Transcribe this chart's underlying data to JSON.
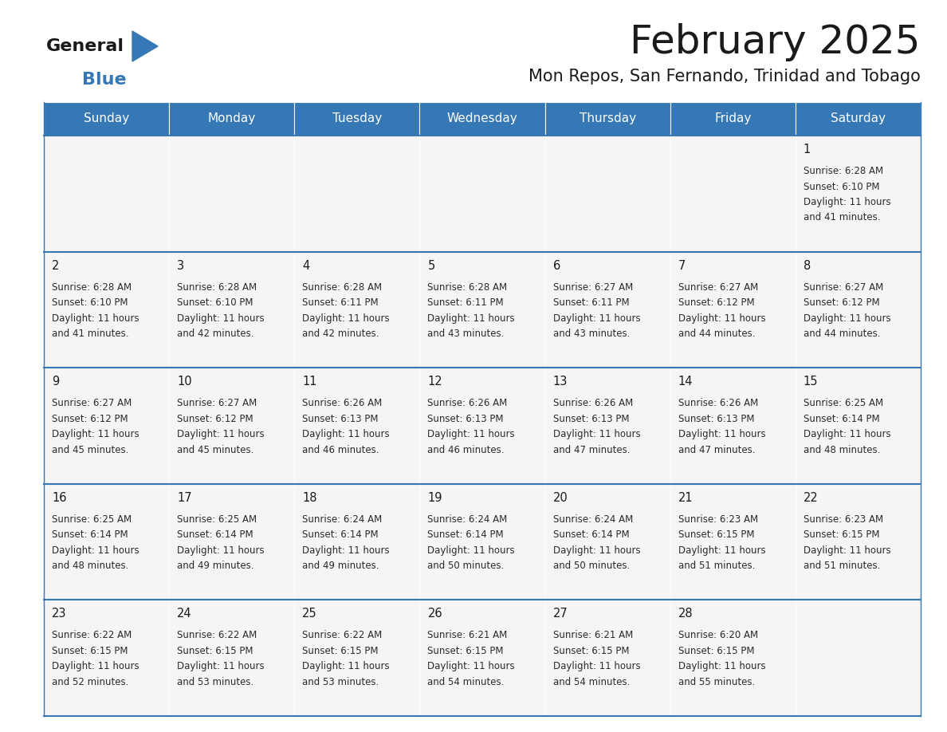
{
  "title": "February 2025",
  "subtitle": "Mon Repos, San Fernando, Trinidad and Tobago",
  "header_color": "#3578b5",
  "header_text_color": "#ffffff",
  "days_of_week": [
    "Sunday",
    "Monday",
    "Tuesday",
    "Wednesday",
    "Thursday",
    "Friday",
    "Saturday"
  ],
  "cell_bg_top": "#ebebeb",
  "cell_bg_main": "#f5f5f5",
  "day_number_color": "#1a1a1a",
  "info_text_color": "#2a2a2a",
  "border_color": "#3578b5",
  "calendar_data": [
    [
      null,
      null,
      null,
      null,
      null,
      null,
      {
        "day": 1,
        "sunrise": "6:28 AM",
        "sunset": "6:10 PM",
        "daylight_line1": "Daylight: 11 hours",
        "daylight_line2": "and 41 minutes."
      }
    ],
    [
      {
        "day": 2,
        "sunrise": "6:28 AM",
        "sunset": "6:10 PM",
        "daylight_line1": "Daylight: 11 hours",
        "daylight_line2": "and 41 minutes."
      },
      {
        "day": 3,
        "sunrise": "6:28 AM",
        "sunset": "6:10 PM",
        "daylight_line1": "Daylight: 11 hours",
        "daylight_line2": "and 42 minutes."
      },
      {
        "day": 4,
        "sunrise": "6:28 AM",
        "sunset": "6:11 PM",
        "daylight_line1": "Daylight: 11 hours",
        "daylight_line2": "and 42 minutes."
      },
      {
        "day": 5,
        "sunrise": "6:28 AM",
        "sunset": "6:11 PM",
        "daylight_line1": "Daylight: 11 hours",
        "daylight_line2": "and 43 minutes."
      },
      {
        "day": 6,
        "sunrise": "6:27 AM",
        "sunset": "6:11 PM",
        "daylight_line1": "Daylight: 11 hours",
        "daylight_line2": "and 43 minutes."
      },
      {
        "day": 7,
        "sunrise": "6:27 AM",
        "sunset": "6:12 PM",
        "daylight_line1": "Daylight: 11 hours",
        "daylight_line2": "and 44 minutes."
      },
      {
        "day": 8,
        "sunrise": "6:27 AM",
        "sunset": "6:12 PM",
        "daylight_line1": "Daylight: 11 hours",
        "daylight_line2": "and 44 minutes."
      }
    ],
    [
      {
        "day": 9,
        "sunrise": "6:27 AM",
        "sunset": "6:12 PM",
        "daylight_line1": "Daylight: 11 hours",
        "daylight_line2": "and 45 minutes."
      },
      {
        "day": 10,
        "sunrise": "6:27 AM",
        "sunset": "6:12 PM",
        "daylight_line1": "Daylight: 11 hours",
        "daylight_line2": "and 45 minutes."
      },
      {
        "day": 11,
        "sunrise": "6:26 AM",
        "sunset": "6:13 PM",
        "daylight_line1": "Daylight: 11 hours",
        "daylight_line2": "and 46 minutes."
      },
      {
        "day": 12,
        "sunrise": "6:26 AM",
        "sunset": "6:13 PM",
        "daylight_line1": "Daylight: 11 hours",
        "daylight_line2": "and 46 minutes."
      },
      {
        "day": 13,
        "sunrise": "6:26 AM",
        "sunset": "6:13 PM",
        "daylight_line1": "Daylight: 11 hours",
        "daylight_line2": "and 47 minutes."
      },
      {
        "day": 14,
        "sunrise": "6:26 AM",
        "sunset": "6:13 PM",
        "daylight_line1": "Daylight: 11 hours",
        "daylight_line2": "and 47 minutes."
      },
      {
        "day": 15,
        "sunrise": "6:25 AM",
        "sunset": "6:14 PM",
        "daylight_line1": "Daylight: 11 hours",
        "daylight_line2": "and 48 minutes."
      }
    ],
    [
      {
        "day": 16,
        "sunrise": "6:25 AM",
        "sunset": "6:14 PM",
        "daylight_line1": "Daylight: 11 hours",
        "daylight_line2": "and 48 minutes."
      },
      {
        "day": 17,
        "sunrise": "6:25 AM",
        "sunset": "6:14 PM",
        "daylight_line1": "Daylight: 11 hours",
        "daylight_line2": "and 49 minutes."
      },
      {
        "day": 18,
        "sunrise": "6:24 AM",
        "sunset": "6:14 PM",
        "daylight_line1": "Daylight: 11 hours",
        "daylight_line2": "and 49 minutes."
      },
      {
        "day": 19,
        "sunrise": "6:24 AM",
        "sunset": "6:14 PM",
        "daylight_line1": "Daylight: 11 hours",
        "daylight_line2": "and 50 minutes."
      },
      {
        "day": 20,
        "sunrise": "6:24 AM",
        "sunset": "6:14 PM",
        "daylight_line1": "Daylight: 11 hours",
        "daylight_line2": "and 50 minutes."
      },
      {
        "day": 21,
        "sunrise": "6:23 AM",
        "sunset": "6:15 PM",
        "daylight_line1": "Daylight: 11 hours",
        "daylight_line2": "and 51 minutes."
      },
      {
        "day": 22,
        "sunrise": "6:23 AM",
        "sunset": "6:15 PM",
        "daylight_line1": "Daylight: 11 hours",
        "daylight_line2": "and 51 minutes."
      }
    ],
    [
      {
        "day": 23,
        "sunrise": "6:22 AM",
        "sunset": "6:15 PM",
        "daylight_line1": "Daylight: 11 hours",
        "daylight_line2": "and 52 minutes."
      },
      {
        "day": 24,
        "sunrise": "6:22 AM",
        "sunset": "6:15 PM",
        "daylight_line1": "Daylight: 11 hours",
        "daylight_line2": "and 53 minutes."
      },
      {
        "day": 25,
        "sunrise": "6:22 AM",
        "sunset": "6:15 PM",
        "daylight_line1": "Daylight: 11 hours",
        "daylight_line2": "and 53 minutes."
      },
      {
        "day": 26,
        "sunrise": "6:21 AM",
        "sunset": "6:15 PM",
        "daylight_line1": "Daylight: 11 hours",
        "daylight_line2": "and 54 minutes."
      },
      {
        "day": 27,
        "sunrise": "6:21 AM",
        "sunset": "6:15 PM",
        "daylight_line1": "Daylight: 11 hours",
        "daylight_line2": "and 54 minutes."
      },
      {
        "day": 28,
        "sunrise": "6:20 AM",
        "sunset": "6:15 PM",
        "daylight_line1": "Daylight: 11 hours",
        "daylight_line2": "and 55 minutes."
      },
      null
    ]
  ]
}
